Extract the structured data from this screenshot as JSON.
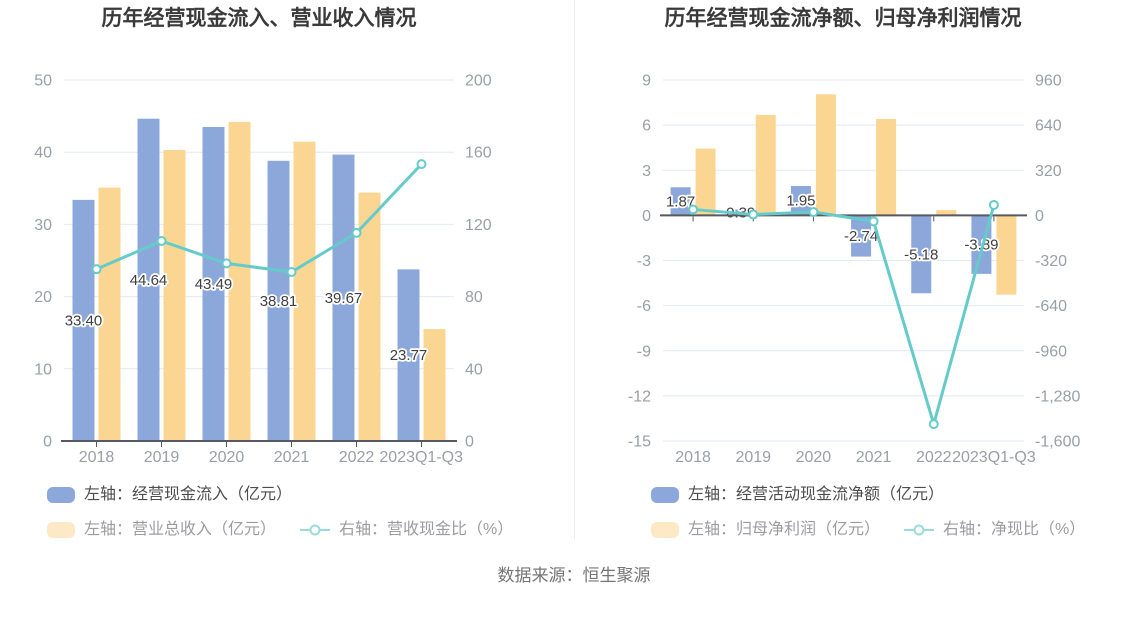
{
  "page": {
    "source_note": "数据来源：恒生聚源"
  },
  "palette": {
    "bar_blue": "#8CA8DB",
    "bar_orange": "#FBD693",
    "line_teal": "#65CBCA",
    "legend_orange_swatch": "#FDE9C5",
    "legend_teal_icon": "#9ADCDC",
    "grid_line": "#E2E8F4",
    "axis_line": "#555A60",
    "axis_text": "#999FA6",
    "title_text": "#3A3A3A",
    "data_label_text": "#404040"
  },
  "chart_data": [
    {
      "type": "bar+line",
      "title": "历年经营现金流入、营业收入情况",
      "categories": [
        "2018",
        "2019",
        "2020",
        "2021",
        "2022",
        "2023Q1-Q3"
      ],
      "left_axis": {
        "min": 0,
        "max": 50,
        "tick_values": [
          50,
          40,
          30,
          20,
          10,
          0
        ],
        "tick_labels": [
          "50",
          "40",
          "30",
          "20",
          "10",
          "0"
        ]
      },
      "right_axis": {
        "min": 0,
        "max": 200,
        "tick_values": [
          200,
          160,
          120,
          80,
          40,
          0
        ],
        "tick_labels": [
          "200",
          "160",
          "120",
          "80",
          "40",
          "0"
        ]
      },
      "series": [
        {
          "name": "左轴：经营现金流入（亿元）",
          "type": "bar",
          "axis": "left",
          "color": "#8CA8DB",
          "values": [
            33.4,
            44.64,
            43.49,
            38.81,
            39.67,
            23.77
          ],
          "data_labels": [
            "33.40",
            "44.64",
            "43.49",
            "38.81",
            "39.67",
            "23.77"
          ]
        },
        {
          "name": "左轴：营业总收入（亿元）",
          "type": "bar",
          "axis": "left",
          "color": "#FBD693",
          "values": [
            35.1,
            40.3,
            44.2,
            41.45,
            34.4,
            15.5
          ]
        },
        {
          "name": "右轴：营收现金比（%）",
          "type": "line",
          "axis": "right",
          "color": "#65CBCA",
          "values": [
            95.2,
            110.8,
            98.4,
            93.6,
            115.3,
            153.4
          ]
        }
      ],
      "legend_position": "bottom-left",
      "grid": true
    },
    {
      "type": "bar+line",
      "title": "历年经营现金流净额、归母净利润情况",
      "categories": [
        "2018",
        "2019",
        "2020",
        "2021",
        "2022",
        "2023Q1-Q3"
      ],
      "left_axis": {
        "min": -15,
        "max": 9,
        "tick_values": [
          9,
          6,
          3,
          0,
          -3,
          -6,
          -9,
          -12,
          -15
        ],
        "tick_labels": [
          "9",
          "6",
          "3",
          "0",
          "-3",
          "-6",
          "-9",
          "-12",
          "-15"
        ]
      },
      "right_axis": {
        "min": -1600,
        "max": 960,
        "tick_values": [
          960,
          640,
          320,
          0,
          -320,
          -640,
          -960,
          -1280,
          -1600
        ],
        "tick_labels": [
          "960",
          "640",
          "320",
          "0",
          "-320",
          "-640",
          "-960",
          "-1,280",
          "-1,600"
        ]
      },
      "series": [
        {
          "name": "左轴：经营活动现金流净额（亿元）",
          "type": "bar",
          "axis": "left",
          "color": "#8CA8DB",
          "values": [
            1.87,
            0.39,
            1.95,
            -2.74,
            -5.18,
            -3.89
          ],
          "data_labels": [
            "1.87",
            "0.39",
            "1.95",
            "-2.74",
            "-5.18",
            "-3.89"
          ]
        },
        {
          "name": "左轴：归母净利润（亿元）",
          "type": "bar",
          "axis": "left",
          "color": "#FBD693",
          "values": [
            4.44,
            6.68,
            8.05,
            6.41,
            0.35,
            -5.27
          ]
        },
        {
          "name": "右轴：净现比（%）",
          "type": "line",
          "axis": "right",
          "color": "#65CBCA",
          "values": [
            42.1,
            5.8,
            24.2,
            -42.7,
            -1480,
            73.8
          ]
        }
      ],
      "legend_position": "bottom-left",
      "grid": true
    }
  ]
}
